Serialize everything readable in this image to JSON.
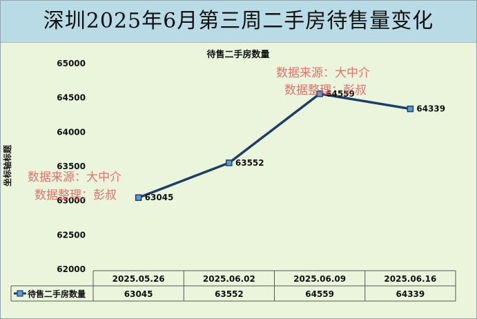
{
  "page_title": "深圳2025年6月第三周二手房待售量变化",
  "watermark": {
    "line1": "数据来源：大中介",
    "line2": "数据整理：彭叔"
  },
  "colors": {
    "title_bg": "#b9dbe6",
    "plot_bg": "#eaf5dc",
    "series_line": "#1f3e66",
    "marker_fill": "#5b9bd5",
    "watermark": "#e05a5a"
  },
  "chart_data": {
    "type": "line",
    "title": "待售二手房数量",
    "ylabel": "坐标轴标题",
    "xlabel": "",
    "ylim": [
      62000,
      65000
    ],
    "y_ticks": [
      62000,
      62500,
      63000,
      63500,
      64000,
      64500,
      65000
    ],
    "categories": [
      "2025.05.26",
      "2025.06.02",
      "2025.06.09",
      "2025.06.16"
    ],
    "series": [
      {
        "name": "待售二手房数量",
        "values": [
          63045,
          63552,
          64559,
          64339
        ]
      }
    ],
    "data_labels": [
      "63045",
      "63552",
      "64559",
      "64339"
    ],
    "data_table": true,
    "grid": false
  }
}
